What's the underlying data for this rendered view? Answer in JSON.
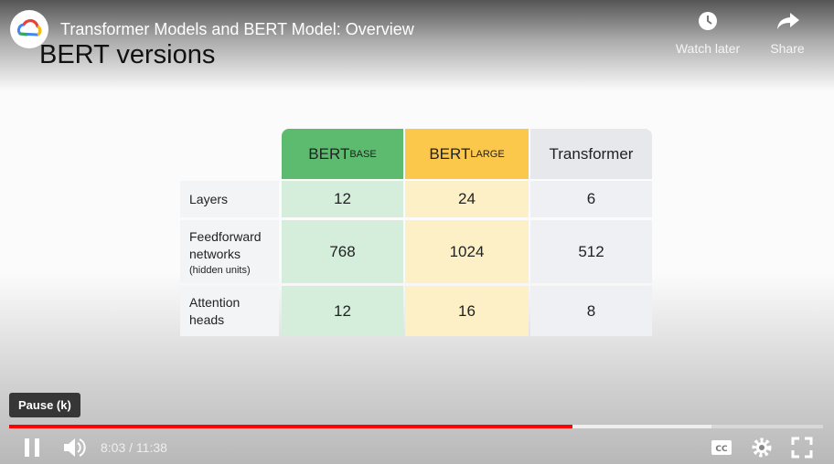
{
  "player": {
    "video_title": "Transformer Models and BERT Model: Overview",
    "watch_later": "Watch later",
    "share": "Share",
    "tooltip": "Pause (k)",
    "time": "8:03 / 11:38"
  },
  "slide": {
    "title": "BERT versions",
    "table": {
      "headers": [
        {
          "main": "BERT",
          "sub": "BASE"
        },
        {
          "main": "BERT",
          "sub": "LARGE"
        },
        {
          "main": "Transformer"
        }
      ],
      "rows": [
        {
          "label": "Layers",
          "cells": [
            "12",
            "24",
            "6"
          ]
        },
        {
          "label": "Feedforward networks",
          "note": "(hidden units)",
          "cells": [
            "768",
            "1024",
            "512"
          ]
        },
        {
          "label": "Attention heads",
          "cells": [
            "12",
            "16",
            "8"
          ]
        }
      ]
    }
  }
}
